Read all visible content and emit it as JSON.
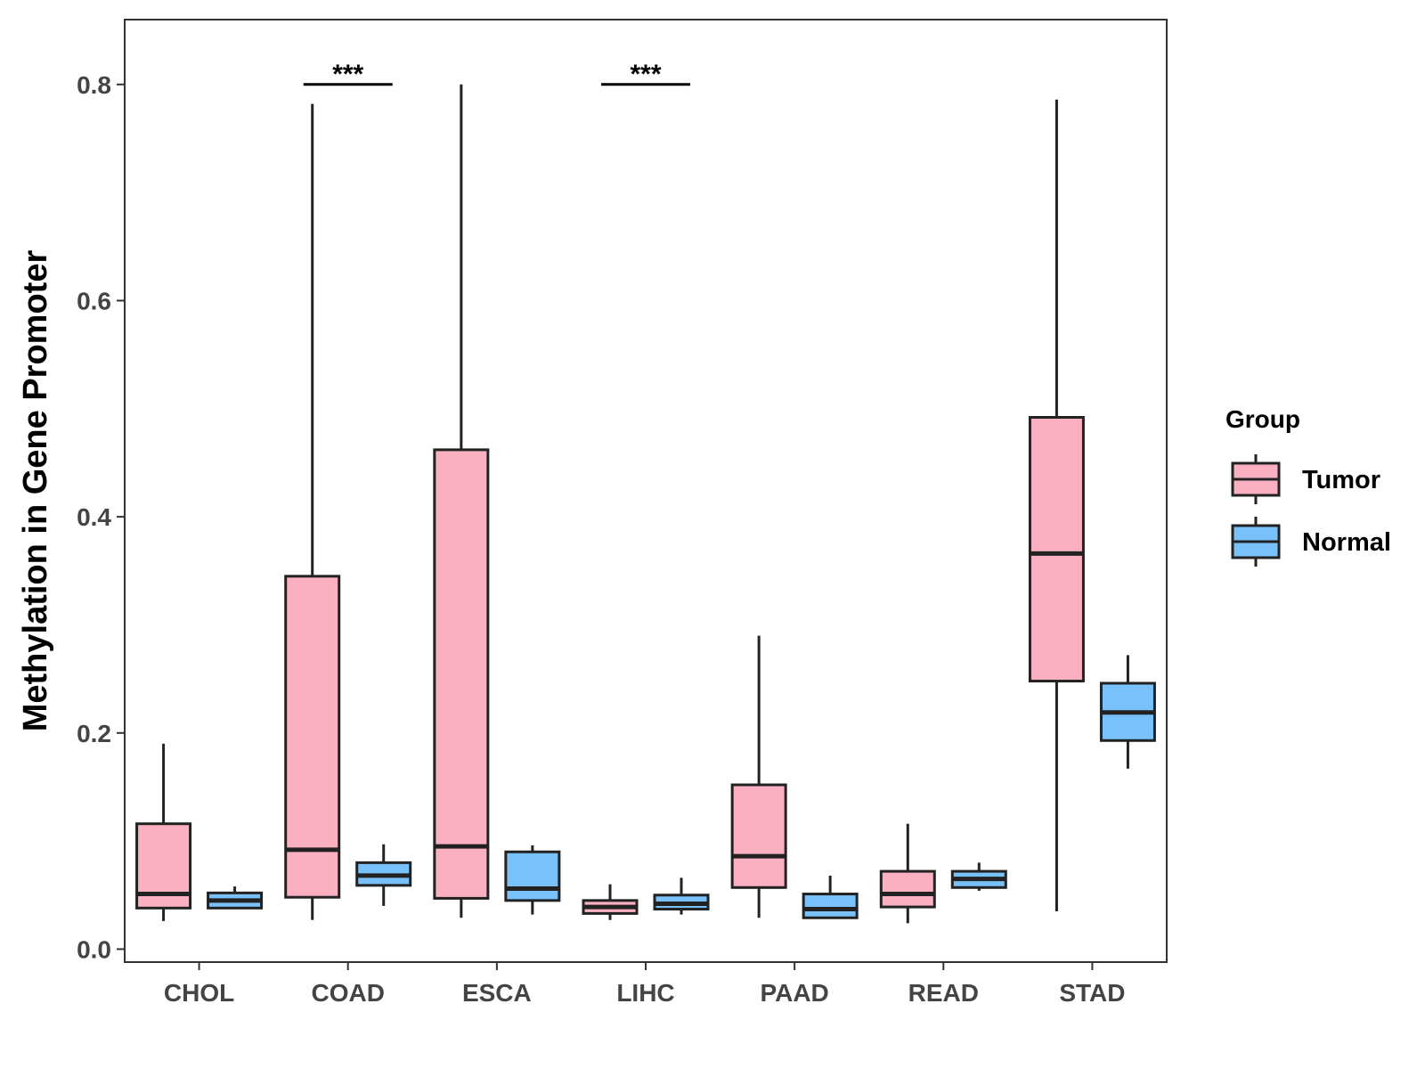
{
  "chart_data": {
    "type": "boxplot",
    "title": "",
    "xlabel": "",
    "ylabel": "Methylation in Gene Promoter",
    "ylim": [
      -0.012,
      0.86
    ],
    "yticks": [
      0.0,
      0.2,
      0.4,
      0.6,
      0.8
    ],
    "ytick_labels": [
      "0.0",
      "0.2",
      "0.4",
      "0.6",
      "0.8"
    ],
    "categories": [
      "CHOL",
      "COAD",
      "ESCA",
      "LIHC",
      "PAAD",
      "READ",
      "STAD"
    ],
    "grid": false,
    "legend": {
      "title": "Group",
      "position": "right",
      "entries": [
        {
          "name": "Tumor",
          "color": "#FBB0C1"
        },
        {
          "name": "Normal",
          "color": "#78C1FA"
        }
      ]
    },
    "series": [
      {
        "name": "Tumor",
        "color": "#FBB0C1",
        "boxes": [
          {
            "category": "CHOL",
            "whisker_low": 0.026,
            "q1": 0.038,
            "median": 0.051,
            "q3": 0.116,
            "whisker_high": 0.19
          },
          {
            "category": "COAD",
            "whisker_low": 0.027,
            "q1": 0.048,
            "median": 0.092,
            "q3": 0.345,
            "whisker_high": 0.782
          },
          {
            "category": "ESCA",
            "whisker_low": 0.029,
            "q1": 0.047,
            "median": 0.095,
            "q3": 0.462,
            "whisker_high": 0.8
          },
          {
            "category": "LIHC",
            "whisker_low": 0.027,
            "q1": 0.033,
            "median": 0.039,
            "q3": 0.045,
            "whisker_high": 0.06
          },
          {
            "category": "PAAD",
            "whisker_low": 0.029,
            "q1": 0.057,
            "median": 0.086,
            "q3": 0.152,
            "whisker_high": 0.29
          },
          {
            "category": "READ",
            "whisker_low": 0.024,
            "q1": 0.039,
            "median": 0.051,
            "q3": 0.072,
            "whisker_high": 0.116
          },
          {
            "category": "STAD",
            "whisker_low": 0.035,
            "q1": 0.248,
            "median": 0.366,
            "q3": 0.492,
            "whisker_high": 0.786
          }
        ]
      },
      {
        "name": "Normal",
        "color": "#78C1FA",
        "boxes": [
          {
            "category": "CHOL",
            "whisker_low": 0.037,
            "q1": 0.038,
            "median": 0.045,
            "q3": 0.052,
            "whisker_high": 0.058
          },
          {
            "category": "COAD",
            "whisker_low": 0.04,
            "q1": 0.059,
            "median": 0.068,
            "q3": 0.08,
            "whisker_high": 0.097
          },
          {
            "category": "ESCA",
            "whisker_low": 0.032,
            "q1": 0.045,
            "median": 0.056,
            "q3": 0.09,
            "whisker_high": 0.096
          },
          {
            "category": "LIHC",
            "whisker_low": 0.032,
            "q1": 0.037,
            "median": 0.042,
            "q3": 0.05,
            "whisker_high": 0.066
          },
          {
            "category": "PAAD",
            "whisker_low": 0.028,
            "q1": 0.029,
            "median": 0.037,
            "q3": 0.051,
            "whisker_high": 0.068
          },
          {
            "category": "READ",
            "whisker_low": 0.054,
            "q1": 0.057,
            "median": 0.065,
            "q3": 0.072,
            "whisker_high": 0.08
          },
          {
            "category": "STAD",
            "whisker_low": 0.167,
            "q1": 0.193,
            "median": 0.219,
            "q3": 0.246,
            "whisker_high": 0.272
          }
        ]
      }
    ],
    "annotations": [
      {
        "category": "COAD",
        "text": "***",
        "y": 0.8
      },
      {
        "category": "LIHC",
        "text": "***",
        "y": 0.8
      }
    ]
  }
}
